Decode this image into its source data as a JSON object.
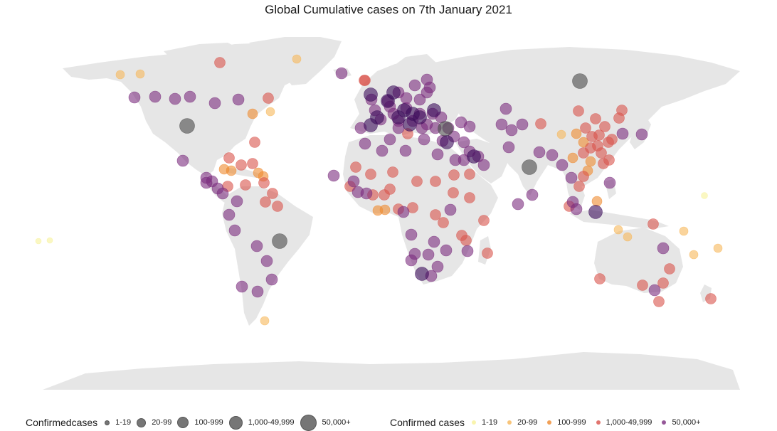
{
  "title": "Global Cumulative cases on 7th January 2021",
  "colors": {
    "land": "#e6e6e6",
    "c1": "#f7f19a",
    "c2": "#f6b75a",
    "c3": "#ef8a2e",
    "c4": "#d9534b",
    "c5": "#7b2d7e",
    "dark": "#4a4a4a",
    "deep": "#3a0c5a"
  },
  "legend_size": {
    "title": "Confirmedcases",
    "items": [
      {
        "label": "1-19",
        "r": 2.5
      },
      {
        "label": "20-99",
        "r": 5.5
      },
      {
        "label": "100-999",
        "r": 7
      },
      {
        "label": "1,000-49,999",
        "r": 8.5
      },
      {
        "label": "50,000+",
        "r": 10.5
      }
    ]
  },
  "legend_color": {
    "title": "Confirmed cases",
    "items": [
      {
        "label": "1-19",
        "color": "#f7f19a"
      },
      {
        "label": "20-99",
        "color": "#f6b75a"
      },
      {
        "label": "100-999",
        "color": "#ef8a2e"
      },
      {
        "label": "1,000-49,999",
        "color": "#d9534b"
      },
      {
        "label": "50,000+",
        "color": "#7b2d7e"
      }
    ]
  }
}
